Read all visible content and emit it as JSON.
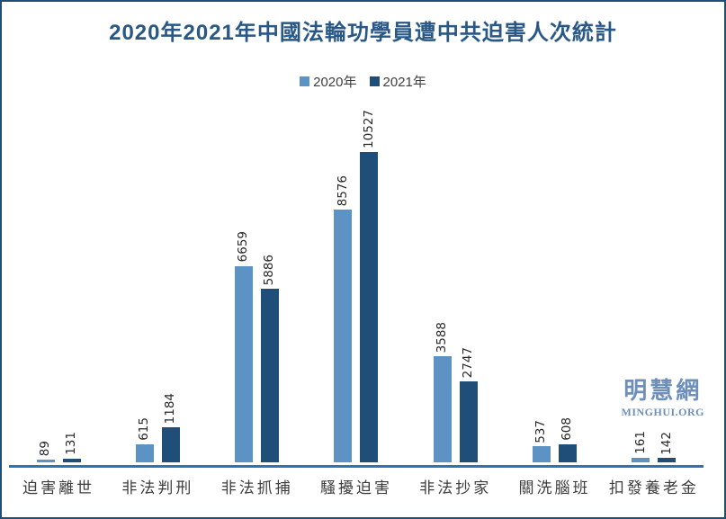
{
  "title": "2020年2021年中國法輪功學員遭中共迫害人次統計",
  "legend": [
    {
      "label": "2020年",
      "color": "#5d93c4"
    },
    {
      "label": "2021年",
      "color": "#1f4e79"
    }
  ],
  "watermark": {
    "cjk": "明慧網",
    "latin": "MINGHUI.ORG"
  },
  "colors": {
    "frame_border": "#1f4e79",
    "title_text": "#2a5885",
    "axis_line": "#2e74b5",
    "bar_2020": "#5d93c4",
    "bar_2021": "#1f4e79",
    "value_label": "#262626",
    "category_label": "#3d3d3d",
    "legend_text": "#404040",
    "watermark_text": "#6d8fba",
    "background": "#ffffff"
  },
  "chart_data": {
    "type": "bar",
    "title": "2020年2021年中國法輪功學員遭中共迫害人次統計",
    "categories": [
      "迫害離世",
      "非法判刑",
      "非法抓捕",
      "騷擾迫害",
      "非法抄家",
      "關洗腦班",
      "扣發養老金"
    ],
    "series": [
      {
        "name": "2020年",
        "values": [
          89,
          615,
          6659,
          8576,
          3588,
          537,
          161
        ]
      },
      {
        "name": "2021年",
        "values": [
          131,
          1184,
          5886,
          10527,
          2747,
          608,
          142
        ]
      }
    ],
    "xlabel": "",
    "ylabel": "",
    "ylim": [
      0,
      11000
    ],
    "grid": false,
    "legend_position": "top-center",
    "value_labels": "rotated-90-above-bars",
    "y_axis_visible": false
  }
}
